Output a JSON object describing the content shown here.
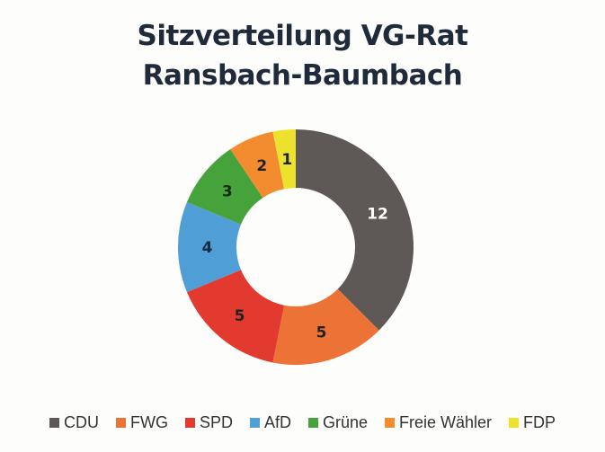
{
  "chart_data": {
    "type": "donut",
    "title_lines": [
      "Sitzverteilung VG-Rat",
      "Ransbach-Baumbach"
    ],
    "categories": [
      "CDU",
      "FWG",
      "SPD",
      "AfD",
      "Grüne",
      "Freie Wähler",
      "FDP"
    ],
    "values": [
      12,
      5,
      5,
      4,
      3,
      2,
      1
    ],
    "data_labels": [
      "12",
      "5",
      "5",
      "4",
      "3",
      "2",
      "1"
    ],
    "colors": [
      "#5e5856",
      "#ec7236",
      "#e23a2f",
      "#4f9fd6",
      "#46a23a",
      "#f28c2e",
      "#ece22e"
    ],
    "label_colors": [
      "#ffffff",
      "#222222",
      "#222222",
      "#1a2a44",
      "#1a2a1a",
      "#222222",
      "#222222"
    ],
    "start": "top",
    "direction": "clockwise",
    "legend_position": "bottom"
  }
}
